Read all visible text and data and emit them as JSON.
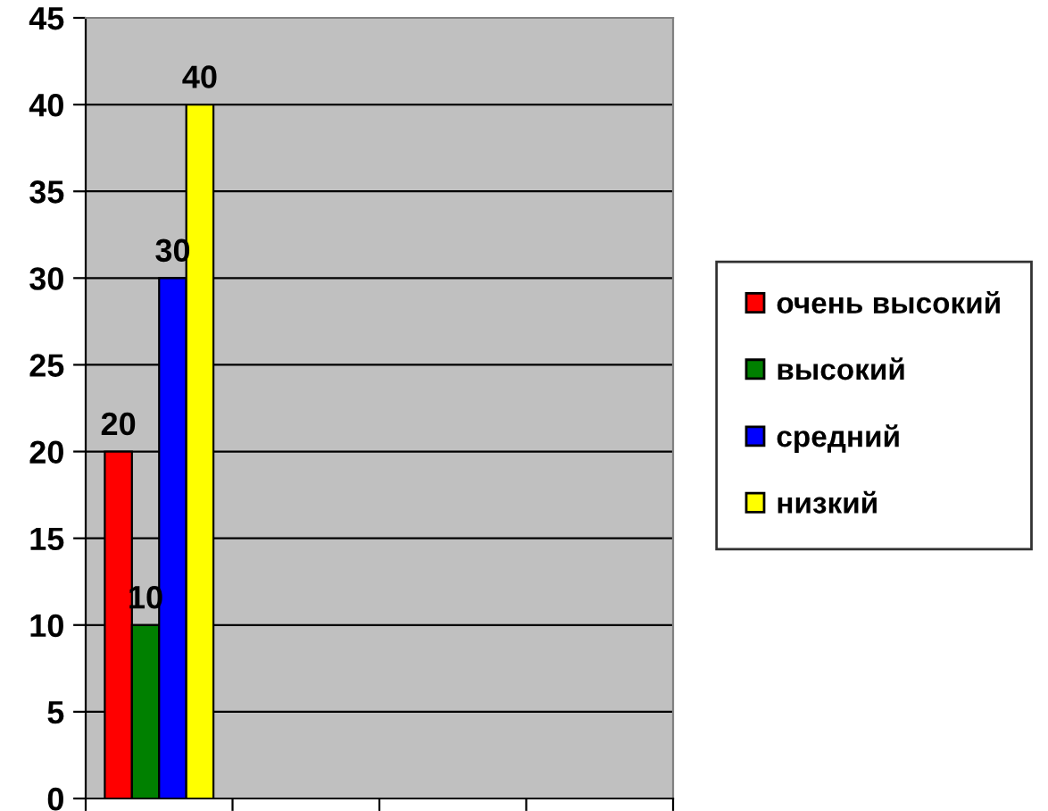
{
  "chart_data": {
    "type": "bar",
    "categories": [
      null,
      null,
      null,
      null
    ],
    "series": [
      {
        "name": "очень высокий",
        "color": "#ff0000",
        "values": [
          20,
          null,
          null,
          null
        ]
      },
      {
        "name": "высокий",
        "color": "#008000",
        "values": [
          10,
          null,
          null,
          null
        ]
      },
      {
        "name": "средний",
        "color": "#0000ff",
        "values": [
          30,
          null,
          null,
          null
        ]
      },
      {
        "name": "низкий",
        "color": "#ffff00",
        "values": [
          40,
          null,
          null,
          null
        ]
      }
    ],
    "ylim": [
      0,
      45
    ],
    "yticks": [
      0,
      5,
      10,
      15,
      20,
      25,
      30,
      35,
      40,
      45
    ],
    "grid": "y",
    "legend": "right",
    "data_labels": true
  }
}
